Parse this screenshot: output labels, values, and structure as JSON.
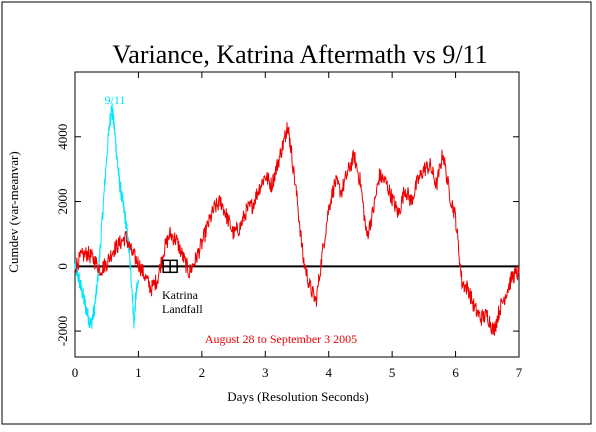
{
  "chart_data": {
    "type": "line",
    "title": "Variance, Katrina Aftermath vs 9/11",
    "xlabel": "Days (Resolution Seconds)",
    "ylabel": "Cumdev (var-meanvar)",
    "xlim": [
      0,
      7
    ],
    "ylim": [
      -2800,
      6000
    ],
    "x_ticks": [
      0,
      1,
      2,
      3,
      4,
      5,
      6,
      7
    ],
    "y_ticks": [
      -2000,
      0,
      2000,
      4000
    ],
    "x_tick_labels": [
      "0",
      "1",
      "2",
      "3",
      "4",
      "5",
      "6",
      "7"
    ],
    "y_tick_labels": [
      "-2000",
      "0",
      "2000",
      "4000"
    ],
    "grid": false,
    "zero_line": true,
    "series": [
      {
        "name": "9/11",
        "color": "#00e5ff",
        "x": [
          0,
          0.05,
          0.1,
          0.15,
          0.2,
          0.25,
          0.3,
          0.35,
          0.4,
          0.45,
          0.5,
          0.55,
          0.58,
          0.62,
          0.66,
          0.7,
          0.75,
          0.8,
          0.85,
          0.9,
          0.93,
          0.96,
          1.0
        ],
        "y": [
          0,
          -300,
          -700,
          -1100,
          -1500,
          -1800,
          -1400,
          -600,
          600,
          2000,
          3400,
          4500,
          4900,
          4300,
          3400,
          2600,
          2000,
          1400,
          500,
          -700,
          -1800,
          -900,
          -500
        ]
      },
      {
        "name": "August 28 to September 3 2005",
        "color": "#ee0000",
        "x": [
          0,
          0.1,
          0.2,
          0.3,
          0.4,
          0.5,
          0.6,
          0.7,
          0.8,
          0.9,
          1.0,
          1.1,
          1.2,
          1.3,
          1.4,
          1.5,
          1.6,
          1.7,
          1.8,
          1.9,
          2.0,
          2.1,
          2.2,
          2.3,
          2.4,
          2.5,
          2.6,
          2.7,
          2.8,
          2.9,
          3.0,
          3.1,
          3.2,
          3.3,
          3.35,
          3.4,
          3.5,
          3.6,
          3.7,
          3.8,
          3.9,
          4.0,
          4.1,
          4.2,
          4.3,
          4.4,
          4.5,
          4.6,
          4.7,
          4.8,
          4.9,
          5.0,
          5.1,
          5.2,
          5.3,
          5.4,
          5.5,
          5.6,
          5.7,
          5.8,
          5.9,
          6.0,
          6.1,
          6.2,
          6.3,
          6.4,
          6.5,
          6.6,
          6.7,
          6.8,
          6.9,
          7.0
        ],
        "y": [
          0,
          300,
          400,
          200,
          -100,
          100,
          500,
          700,
          900,
          400,
          100,
          -300,
          -700,
          -400,
          500,
          1000,
          800,
          300,
          -200,
          200,
          700,
          1300,
          1800,
          2000,
          1500,
          1000,
          1200,
          1700,
          1900,
          2400,
          2800,
          2500,
          3200,
          3900,
          4400,
          3700,
          2100,
          200,
          -600,
          -1100,
          400,
          1800,
          2600,
          2300,
          2900,
          3400,
          2600,
          900,
          1700,
          2800,
          2600,
          2100,
          1600,
          2400,
          2000,
          2600,
          3000,
          3100,
          2500,
          3500,
          2300,
          1500,
          -500,
          -700,
          -1300,
          -1600,
          -1500,
          -2000,
          -1300,
          -800,
          -300,
          -200
        ]
      }
    ],
    "annotations": [
      {
        "text": "9/11",
        "color": "#00e5ff"
      },
      {
        "text_lines": [
          "Katrina",
          "Landfall"
        ],
        "color": "#000000",
        "marker_x": 1.5,
        "marker_y": 0
      },
      {
        "text": "August 28 to September 3 2005",
        "color": "#ee0000"
      }
    ]
  }
}
